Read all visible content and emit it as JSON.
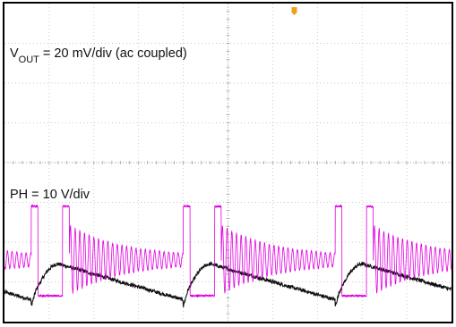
{
  "chart_data": {
    "type": "line",
    "title": "",
    "grid": true,
    "divisions": {
      "horizontal": 10,
      "vertical": 8
    },
    "trigger_marker_color": "#f0a020",
    "channels": [
      {
        "name_main": "V",
        "name_sub": "OUT",
        "scale_text": " = 20 mV/div (ac coupled)",
        "color": "#111111",
        "center_div": 1.0,
        "ripple_period_div": 3.4,
        "ripple_phase_div": 0.6,
        "ripple_amplitude_div": 0.45
      },
      {
        "name_main": "PH = 10 V/div",
        "name_sub": "",
        "scale_text": "",
        "color": "#e000e0",
        "high_level_div": 2.9,
        "low_level_div": 0.65,
        "burst_period_div": 3.4,
        "burst_phase_div": 0.6,
        "pulse_width_div": 0.15,
        "pulse_gap_div": 0.55,
        "ringing_start_amplitude_div": 0.8
      }
    ]
  }
}
